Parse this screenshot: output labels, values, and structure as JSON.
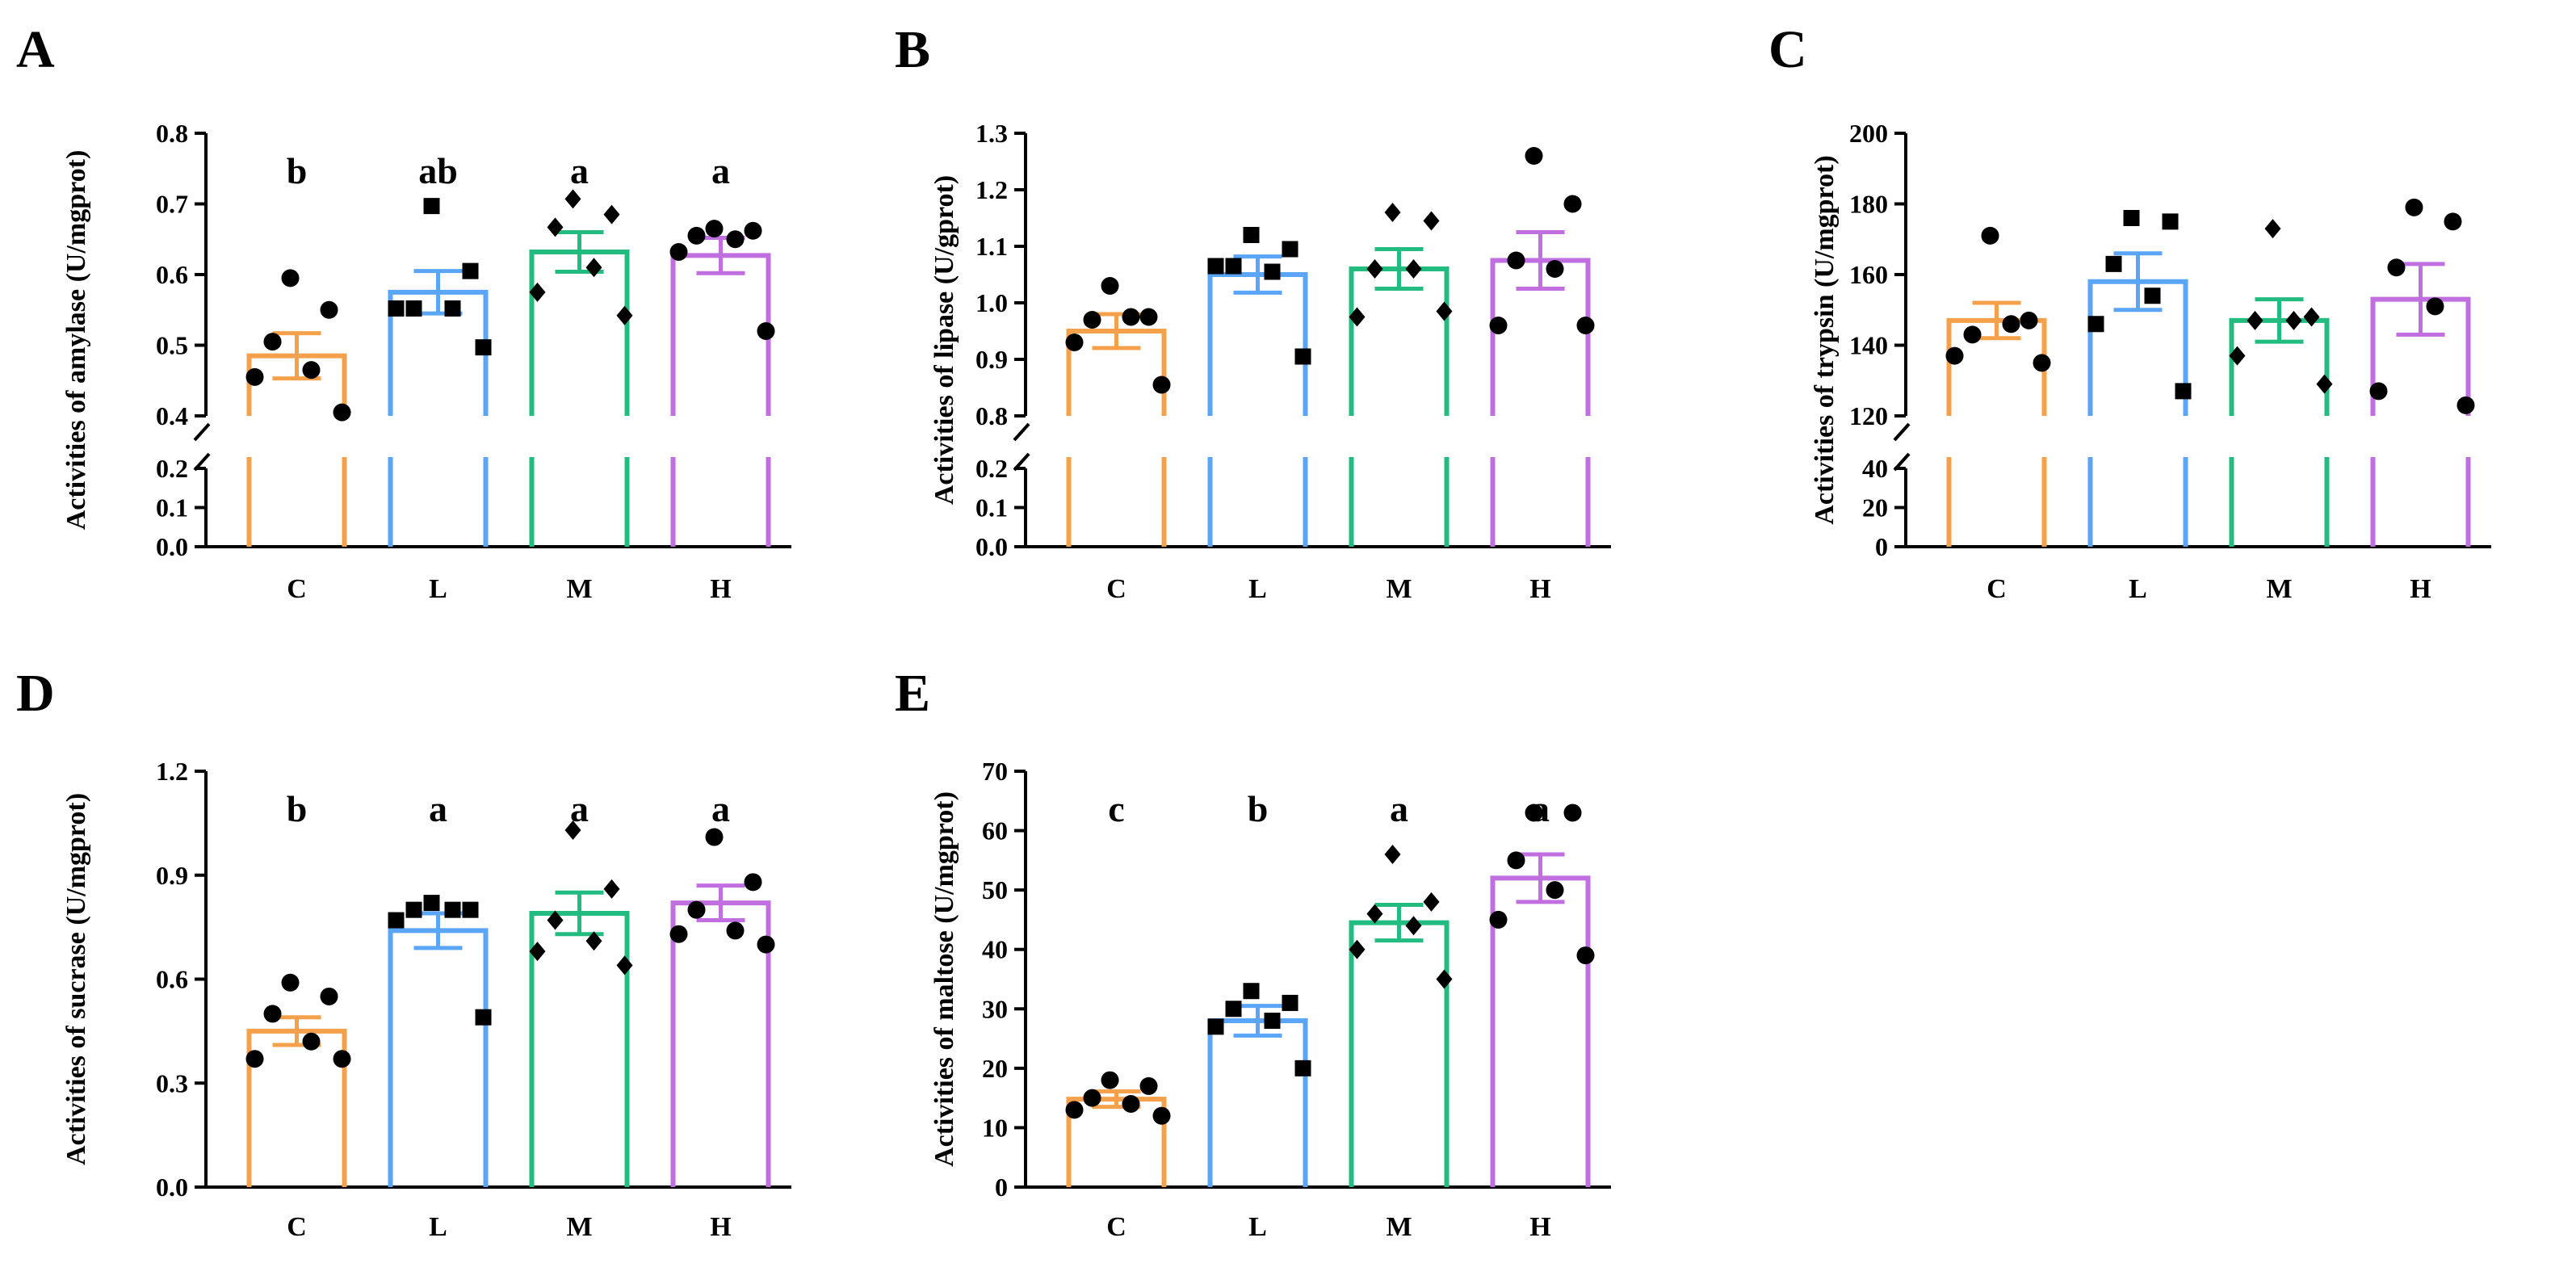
{
  "chart_data": [
    {
      "panel": "A",
      "type": "bar",
      "title": "",
      "xlabel": "",
      "ylabel": "Activities of amylase (U/mgprot)",
      "categories": [
        "C",
        "L",
        "M",
        "H"
      ],
      "colors": [
        "#F5A04A",
        "#5AA5F5",
        "#22BB80",
        "#C06EE0"
      ],
      "markers": [
        "circle",
        "square",
        "diamond",
        "circle"
      ],
      "values": [
        0.485,
        0.575,
        0.632,
        0.627
      ],
      "sem": [
        0.032,
        0.03,
        0.028,
        0.025
      ],
      "points": [
        [
          0.595,
          0.55,
          0.505,
          0.465,
          0.455,
          0.405
        ],
        [
          0.697,
          0.605,
          0.552,
          0.552,
          0.552,
          0.497
        ],
        [
          0.707,
          0.685,
          0.667,
          0.61,
          0.575,
          0.542
        ],
        [
          0.665,
          0.662,
          0.655,
          0.65,
          0.632,
          0.52
        ]
      ],
      "significance": [
        "b",
        "ab",
        "a",
        "a"
      ],
      "axis_break": true,
      "y_lower": {
        "range": [
          0,
          0.2
        ],
        "ticks": [
          "0.0",
          "0.1",
          "0.2"
        ]
      },
      "y_upper": {
        "range": [
          0.4,
          0.8
        ],
        "ticks": [
          "0.4",
          "0.5",
          "0.6",
          "0.7",
          "0.8"
        ]
      }
    },
    {
      "panel": "B",
      "type": "bar",
      "title": "",
      "xlabel": "",
      "ylabel": "Activities of lipase (U/gprot)",
      "categories": [
        "C",
        "L",
        "M",
        "H"
      ],
      "colors": [
        "#F5A04A",
        "#5AA5F5",
        "#22BB80",
        "#C06EE0"
      ],
      "markers": [
        "circle",
        "square",
        "diamond",
        "circle"
      ],
      "values": [
        0.95,
        1.05,
        1.06,
        1.075
      ],
      "sem": [
        0.03,
        0.032,
        0.035,
        0.05
      ],
      "points": [
        [
          1.03,
          0.975,
          0.97,
          0.975,
          0.93,
          0.855
        ],
        [
          1.12,
          1.095,
          1.065,
          1.055,
          1.065,
          0.905
        ],
        [
          1.16,
          1.145,
          1.06,
          1.06,
          0.975,
          0.985
        ],
        [
          1.26,
          1.175,
          1.075,
          1.06,
          0.96,
          0.96
        ]
      ],
      "significance": [
        "",
        "",
        "",
        ""
      ],
      "axis_break": true,
      "y_lower": {
        "range": [
          0,
          0.2
        ],
        "ticks": [
          "0.0",
          "0.1",
          "0.2"
        ]
      },
      "y_upper": {
        "range": [
          0.8,
          1.3
        ],
        "ticks": [
          "0.8",
          "0.9",
          "1.0",
          "1.1",
          "1.2",
          "1.3"
        ]
      }
    },
    {
      "panel": "C",
      "type": "bar",
      "title": "",
      "xlabel": "",
      "ylabel": "Activities of trypsin (U/mgprot)",
      "categories": [
        "C",
        "L",
        "M",
        "H"
      ],
      "colors": [
        "#F5A04A",
        "#5AA5F5",
        "#22BB80",
        "#C06EE0"
      ],
      "markers": [
        "circle",
        "square",
        "diamond",
        "circle"
      ],
      "values": [
        147,
        158,
        147,
        153
      ],
      "sem": [
        5,
        8,
        6,
        10
      ],
      "points": [
        [
          171,
          147,
          143,
          146,
          137,
          135
        ],
        [
          176,
          175,
          163,
          154,
          146,
          127
        ],
        [
          173,
          148,
          147,
          147,
          137,
          129
        ],
        [
          179,
          175,
          162,
          151,
          127,
          123
        ]
      ],
      "significance": [
        "",
        "",
        "",
        ""
      ],
      "axis_break": true,
      "y_lower": {
        "range": [
          0,
          40
        ],
        "ticks": [
          "0",
          "20",
          "40"
        ]
      },
      "y_upper": {
        "range": [
          120,
          200
        ],
        "ticks": [
          "120",
          "140",
          "160",
          "180",
          "200"
        ]
      }
    },
    {
      "panel": "D",
      "type": "bar",
      "title": "",
      "xlabel": "",
      "ylabel": "Activities of sucrase (U/mgprot)",
      "categories": [
        "C",
        "L",
        "M",
        "H"
      ],
      "colors": [
        "#F5A04A",
        "#5AA5F5",
        "#22BB80",
        "#C06EE0"
      ],
      "markers": [
        "circle",
        "square",
        "diamond",
        "circle"
      ],
      "values": [
        0.45,
        0.74,
        0.79,
        0.82
      ],
      "sem": [
        0.04,
        0.05,
        0.06,
        0.05
      ],
      "points": [
        [
          0.59,
          0.55,
          0.5,
          0.42,
          0.37,
          0.37
        ],
        [
          0.82,
          0.8,
          0.8,
          0.8,
          0.77,
          0.49
        ],
        [
          1.03,
          0.86,
          0.77,
          0.71,
          0.68,
          0.64
        ],
        [
          1.01,
          0.88,
          0.8,
          0.74,
          0.73,
          0.7
        ]
      ],
      "significance": [
        "b",
        "a",
        "a",
        "a"
      ],
      "axis_break": false,
      "ylim": [
        0,
        1.2
      ],
      "yticks": [
        "0.0",
        "0.3",
        "0.6",
        "0.9",
        "1.2"
      ]
    },
    {
      "panel": "E",
      "type": "bar",
      "title": "",
      "xlabel": "",
      "ylabel": "Activities of maltose (U/mgprot)",
      "categories": [
        "C",
        "L",
        "M",
        "H"
      ],
      "colors": [
        "#F5A04A",
        "#5AA5F5",
        "#22BB80",
        "#C06EE0"
      ],
      "markers": [
        "circle",
        "square",
        "diamond",
        "circle"
      ],
      "values": [
        14.8,
        28,
        44.5,
        52
      ],
      "sem": [
        1.3,
        2.5,
        3.0,
        4.0
      ],
      "points": [
        [
          18,
          17,
          15,
          14,
          13,
          12
        ],
        [
          33,
          31,
          30,
          28,
          27,
          20
        ],
        [
          56,
          48,
          46,
          44,
          40,
          35
        ],
        [
          63,
          63,
          55,
          50,
          45,
          39
        ]
      ],
      "significance": [
        "c",
        "b",
        "a",
        "a"
      ],
      "axis_break": false,
      "ylim": [
        0,
        70
      ],
      "yticks": [
        "0",
        "10",
        "20",
        "30",
        "40",
        "50",
        "60",
        "70"
      ]
    }
  ]
}
